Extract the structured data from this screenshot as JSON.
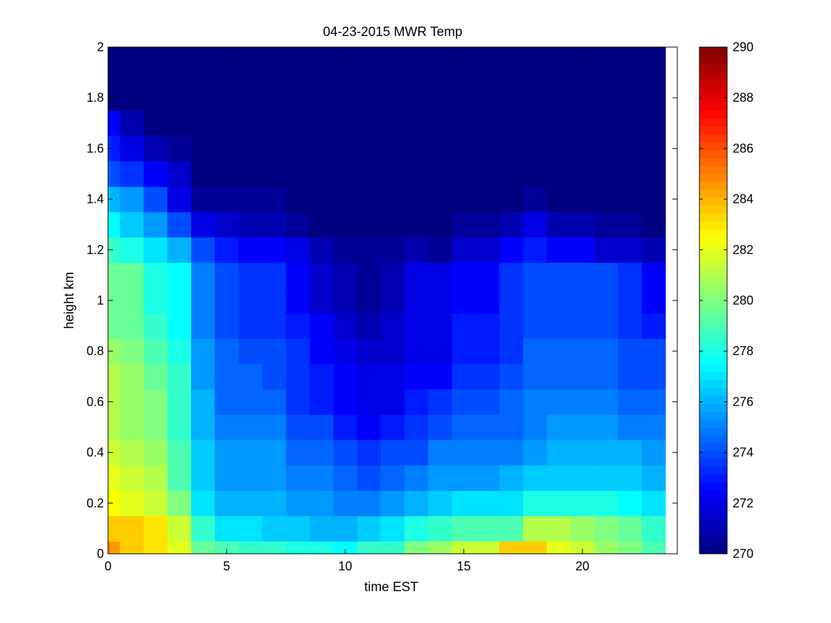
{
  "chart_data": {
    "type": "heatmap",
    "title": "04-23-2015 MWR Temp",
    "xlabel": "time EST",
    "ylabel": "height km",
    "xlim": [
      0,
      24
    ],
    "ylim": [
      0,
      2
    ],
    "x_ticks": [
      0,
      5,
      10,
      15,
      20
    ],
    "y_ticks": [
      0,
      0.2,
      0.4,
      0.6,
      0.8,
      1,
      1.2,
      1.4,
      1.6,
      1.8,
      2
    ],
    "x_tick_labels": [
      "0",
      "5",
      "10",
      "15",
      "20"
    ],
    "y_tick_labels": [
      "0",
      "0.2",
      "0.4",
      "0.6",
      "0.8",
      "1",
      "1.2",
      "1.4",
      "1.6",
      "1.8",
      "2"
    ],
    "colormap": "jet",
    "color_limits": [
      270,
      290
    ],
    "colorbar_ticks": [
      270,
      272,
      274,
      276,
      278,
      280,
      282,
      284,
      286,
      288,
      290
    ],
    "colorbar_tick_labels": [
      "270",
      "272",
      "274",
      "276",
      "278",
      "280",
      "282",
      "284",
      "286",
      "288",
      "290"
    ],
    "grid": false,
    "time_edges": [
      0,
      0.1,
      0.5,
      1.5,
      2.5,
      3.5,
      4.5,
      5.5,
      6.5,
      7.5,
      8.5,
      9.5,
      10.5,
      11.5,
      12.5,
      13.5,
      14.5,
      15.5,
      16.5,
      17.5,
      18.5,
      19.5,
      20.5,
      21.5,
      22.5,
      23.5
    ],
    "height_edges": [
      0,
      0.05,
      0.15,
      0.25,
      0.35,
      0.45,
      0.55,
      0.65,
      0.75,
      0.85,
      0.95,
      1.05,
      1.15,
      1.25,
      1.35,
      1.45,
      1.55,
      1.65,
      1.75,
      1.85,
      2.0
    ],
    "values": [
      [
        285.0,
        284.5,
        283.5,
        283.0,
        282.0,
        279.5,
        279.0,
        278.5,
        278.5,
        278.0,
        278.0,
        277.5,
        278.5,
        278.5,
        280.0,
        280.5,
        281.5,
        281.5,
        283.5,
        283.5,
        282.0,
        281.5,
        280.5,
        280.0,
        279.0
      ],
      [
        283.5,
        283.5,
        283.5,
        283.0,
        281.5,
        278.5,
        277.0,
        277.0,
        276.5,
        276.5,
        276.0,
        276.0,
        276.5,
        277.0,
        278.0,
        278.5,
        279.0,
        279.0,
        279.0,
        281.0,
        281.0,
        280.5,
        280.0,
        279.5,
        278.5
      ],
      [
        282.5,
        282.5,
        282.0,
        281.5,
        280.0,
        277.0,
        276.0,
        276.0,
        276.0,
        275.5,
        275.5,
        275.0,
        275.0,
        275.5,
        276.0,
        276.5,
        277.0,
        277.0,
        277.0,
        278.0,
        278.0,
        278.0,
        278.0,
        277.5,
        277.0
      ],
      [
        282.0,
        282.0,
        281.5,
        281.0,
        279.0,
        276.5,
        275.5,
        275.5,
        275.5,
        275.0,
        275.0,
        274.5,
        274.0,
        274.5,
        275.0,
        275.5,
        275.5,
        275.5,
        276.0,
        276.5,
        276.5,
        276.5,
        276.5,
        276.5,
        276.0
      ],
      [
        281.5,
        281.5,
        281.0,
        280.5,
        279.0,
        276.5,
        275.5,
        275.5,
        275.5,
        274.5,
        274.5,
        274.0,
        273.5,
        274.0,
        274.0,
        275.0,
        275.0,
        275.0,
        275.0,
        275.5,
        276.0,
        276.0,
        276.0,
        276.0,
        275.5
      ],
      [
        281.0,
        281.0,
        280.5,
        280.0,
        278.5,
        276.0,
        275.0,
        275.0,
        275.0,
        274.0,
        274.0,
        273.0,
        272.5,
        273.0,
        273.5,
        274.0,
        274.5,
        274.5,
        274.5,
        275.0,
        275.5,
        275.5,
        275.5,
        275.0,
        275.0
      ],
      [
        281.0,
        281.0,
        280.5,
        280.0,
        278.5,
        276.0,
        274.5,
        274.5,
        274.5,
        273.5,
        273.0,
        272.5,
        272.0,
        272.0,
        273.0,
        273.5,
        274.0,
        274.0,
        274.5,
        275.0,
        275.0,
        275.0,
        275.0,
        274.5,
        274.5
      ],
      [
        281.0,
        281.0,
        280.5,
        279.5,
        278.5,
        275.5,
        274.5,
        274.5,
        274.0,
        273.5,
        273.0,
        272.5,
        272.0,
        272.0,
        272.5,
        272.5,
        273.5,
        273.5,
        274.0,
        274.5,
        274.5,
        274.5,
        274.5,
        274.0,
        274.0
      ],
      [
        280.5,
        280.5,
        280.0,
        279.0,
        278.0,
        275.5,
        274.5,
        274.0,
        274.0,
        273.5,
        272.5,
        272.0,
        271.5,
        271.5,
        272.0,
        272.0,
        273.0,
        273.0,
        273.5,
        274.5,
        274.5,
        274.5,
        274.5,
        274.0,
        274.0
      ],
      [
        280.0,
        279.5,
        279.5,
        278.5,
        277.5,
        275.0,
        274.0,
        273.5,
        273.5,
        273.0,
        272.5,
        271.5,
        271.0,
        271.5,
        272.0,
        272.0,
        273.0,
        273.0,
        273.5,
        274.0,
        274.0,
        274.0,
        274.0,
        273.5,
        273.0
      ],
      [
        280.0,
        279.5,
        279.5,
        278.0,
        277.5,
        275.0,
        274.0,
        273.5,
        273.5,
        272.5,
        271.5,
        271.0,
        270.5,
        271.0,
        272.0,
        272.0,
        272.5,
        272.5,
        273.5,
        274.0,
        274.0,
        274.0,
        274.0,
        273.5,
        272.5
      ],
      [
        280.0,
        279.5,
        279.5,
        278.0,
        277.5,
        275.0,
        274.0,
        273.5,
        273.5,
        272.5,
        271.5,
        271.0,
        270.5,
        271.0,
        272.0,
        272.0,
        272.5,
        272.5,
        273.5,
        274.0,
        274.0,
        274.0,
        274.0,
        273.5,
        272.5
      ],
      [
        279.0,
        278.5,
        278.0,
        277.0,
        276.0,
        274.0,
        273.0,
        272.5,
        272.5,
        272.0,
        271.0,
        270.5,
        270.5,
        270.5,
        271.0,
        270.5,
        271.5,
        271.5,
        272.5,
        273.0,
        272.5,
        272.5,
        271.5,
        271.5,
        271.0
      ],
      [
        277.5,
        277.5,
        276.5,
        275.5,
        274.0,
        272.0,
        271.5,
        271.0,
        271.0,
        270.5,
        270.0,
        270.0,
        270.0,
        270.0,
        270.0,
        270.0,
        270.5,
        270.5,
        271.0,
        272.0,
        271.0,
        271.0,
        270.5,
        270.5,
        270.0
      ],
      [
        276.5,
        276.0,
        275.5,
        274.0,
        272.0,
        270.5,
        270.5,
        270.5,
        270.5,
        270.0,
        270.0,
        270.0,
        270.0,
        270.0,
        270.0,
        270.0,
        270.0,
        270.0,
        270.0,
        270.5,
        270.0,
        270.0,
        270.0,
        270.0,
        270.0
      ],
      [
        274.5,
        274.0,
        273.5,
        272.5,
        271.5,
        270.0,
        270.0,
        270.0,
        270.0,
        270.0,
        270.0,
        270.0,
        270.0,
        270.0,
        270.0,
        270.0,
        270.0,
        270.0,
        270.0,
        270.0,
        270.0,
        270.0,
        270.0,
        270.0,
        270.0
      ],
      [
        273.5,
        273.0,
        272.0,
        271.0,
        270.5,
        270.0,
        270.0,
        270.0,
        270.0,
        270.0,
        270.0,
        270.0,
        270.0,
        270.0,
        270.0,
        270.0,
        270.0,
        270.0,
        270.0,
        270.0,
        270.0,
        270.0,
        270.0,
        270.0,
        270.0
      ],
      [
        272.5,
        272.5,
        271.0,
        270.0,
        270.0,
        270.0,
        270.0,
        270.0,
        270.0,
        270.0,
        270.0,
        270.0,
        270.0,
        270.0,
        270.0,
        270.0,
        270.0,
        270.0,
        270.0,
        270.0,
        270.0,
        270.0,
        270.0,
        270.0,
        270.0
      ],
      [
        270.0,
        270.0,
        270.0,
        270.0,
        270.0,
        270.0,
        270.0,
        270.0,
        270.0,
        270.0,
        270.0,
        270.0,
        270.0,
        270.0,
        270.0,
        270.0,
        270.0,
        270.0,
        270.0,
        270.0,
        270.0,
        270.0,
        270.0,
        270.0,
        270.0
      ],
      [
        270.0,
        270.0,
        270.0,
        270.0,
        270.0,
        270.0,
        270.0,
        270.0,
        270.0,
        270.0,
        270.0,
        270.0,
        270.0,
        270.0,
        270.0,
        270.0,
        270.0,
        270.0,
        270.0,
        270.0,
        270.0,
        270.0,
        270.0,
        270.0,
        270.0
      ]
    ]
  }
}
